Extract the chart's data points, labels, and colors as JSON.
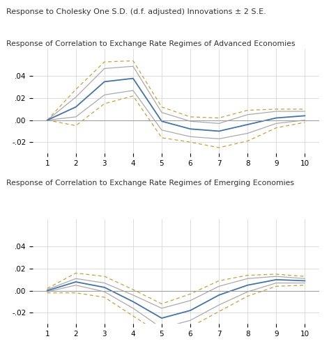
{
  "title": "Response to Cholesky One S.D. (d.f. adjusted) Innovations ± 2 S.E.",
  "subplot1_title": "Response of Correlation to Exchange Rate Regimes of Advanced Economies",
  "subplot2_title": "Response of Correlation to Exchange Rate Regimes of Emerging Economies",
  "x": [
    1,
    2,
    3,
    4,
    5,
    6,
    7,
    8,
    9,
    10
  ],
  "adv_center": [
    0.0,
    0.012,
    0.035,
    0.038,
    -0.001,
    -0.008,
    -0.01,
    -0.004,
    0.002,
    0.004
  ],
  "adv_upper_gray": [
    0.0,
    0.021,
    0.047,
    0.049,
    0.007,
    -0.001,
    -0.003,
    0.005,
    0.008,
    0.008
  ],
  "adv_lower_gray": [
    0.0,
    0.003,
    0.023,
    0.027,
    -0.009,
    -0.015,
    -0.017,
    -0.012,
    -0.003,
    0.0
  ],
  "adv_upper_gold": [
    0.0,
    0.028,
    0.053,
    0.054,
    0.012,
    0.003,
    0.002,
    0.009,
    0.01,
    0.01
  ],
  "adv_lower_gold": [
    0.0,
    -0.005,
    0.015,
    0.022,
    -0.016,
    -0.02,
    -0.025,
    -0.019,
    -0.007,
    -0.002
  ],
  "emg_center": [
    0.0,
    0.008,
    0.003,
    -0.01,
    -0.025,
    -0.018,
    -0.004,
    0.005,
    0.01,
    0.009
  ],
  "emg_upper_gray": [
    0.001,
    0.011,
    0.007,
    -0.004,
    -0.016,
    -0.009,
    0.004,
    0.011,
    0.013,
    0.011
  ],
  "emg_lower_gray": [
    -0.001,
    0.005,
    -0.001,
    -0.016,
    -0.034,
    -0.027,
    -0.013,
    -0.001,
    0.007,
    0.007
  ],
  "emg_upper_gold": [
    0.002,
    0.016,
    0.013,
    0.001,
    -0.012,
    -0.003,
    0.009,
    0.014,
    0.015,
    0.013
  ],
  "emg_lower_gold": [
    -0.002,
    -0.002,
    -0.006,
    -0.023,
    -0.04,
    -0.033,
    -0.019,
    -0.005,
    0.004,
    0.005
  ],
  "center_color": "#4472a8",
  "band_gray_color": "#aaaaaa",
  "band_gold_color": "#c8a040",
  "ylim_adv": [
    -0.03,
    0.065
  ],
  "ylim_emg": [
    -0.03,
    0.065
  ],
  "yticks": [
    -0.02,
    0.0,
    0.02,
    0.04
  ],
  "ytick_labels": [
    "-.02",
    ".00",
    ".02",
    ".04"
  ],
  "background_color": "#ffffff",
  "grid_color": "#d0d0d0"
}
